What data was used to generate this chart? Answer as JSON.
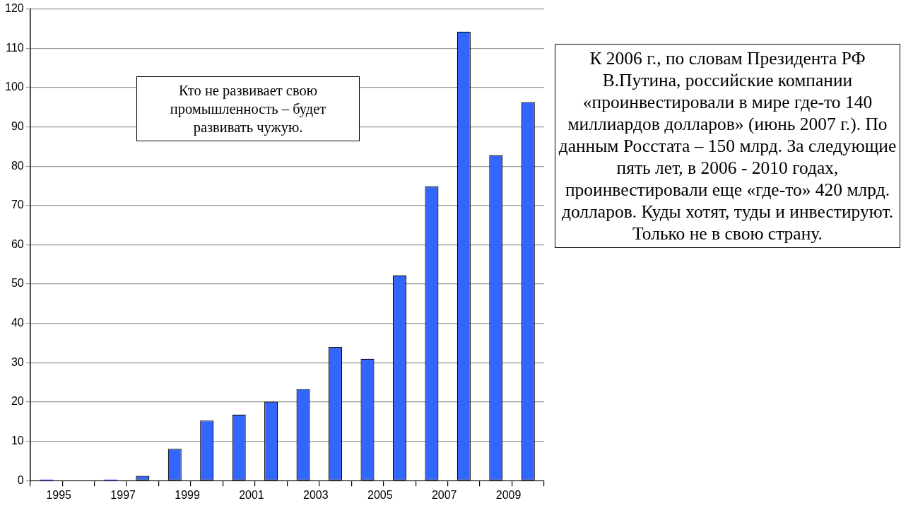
{
  "chart_data": {
    "type": "bar",
    "categories": [
      "1995",
      null,
      "1997",
      null,
      "1999",
      null,
      "2001",
      null,
      "2003",
      null,
      "2005",
      null,
      "2007",
      null,
      "2009",
      null
    ],
    "values": [
      0.3,
      null,
      0.3,
      1.2,
      8.1,
      15.3,
      16.8,
      20.1,
      23.3,
      34,
      31,
      52.2,
      74.8,
      114.2,
      82.8,
      96.3
    ],
    "color": "#3366ff",
    "ylim": [
      0,
      120
    ],
    "yticks": [
      0,
      10,
      20,
      30,
      40,
      50,
      60,
      70,
      80,
      90,
      100,
      110,
      120
    ],
    "grid": "y",
    "legend": false,
    "annotations": [
      "Кто не развивает свою промышленность – будет развивать чужую.",
      "К 2006 г., по словам Президента РФ В.Путина, российские компании «проинвестировали в мире где-то 140 миллиардов долларов» (июнь 2007 г.). По данным Росстата – 150 млрд. За следующие пять лет, в 2006 - 2010 годах, проинвестировали еще «где-то» 420 млрд. долларов. Куды хотят, туды и инвестируют. Только не в свою страну."
    ]
  }
}
